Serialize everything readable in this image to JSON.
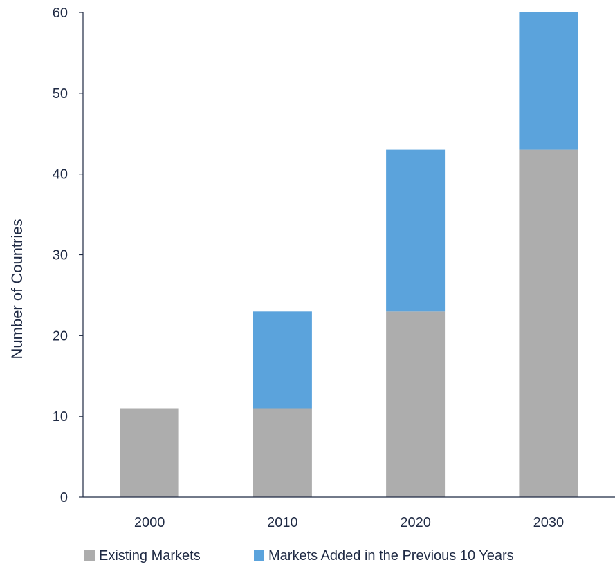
{
  "chart_data": {
    "type": "bar",
    "stacked": true,
    "categories": [
      "2000",
      "2010",
      "2020",
      "2030"
    ],
    "series": [
      {
        "name": "Existing Markets",
        "values": [
          11,
          11,
          23,
          43
        ],
        "color": "#adadad"
      },
      {
        "name": "Markets Added in the Previous 10 Years",
        "values": [
          0,
          12,
          20,
          17
        ],
        "color": "#5ba3dc"
      }
    ],
    "title": "",
    "xlabel": "",
    "ylabel": "Number of Countries",
    "ylim": [
      0,
      60
    ],
    "yticks": [
      0,
      10,
      20,
      30,
      40,
      50,
      60
    ],
    "grid": false,
    "legend_position": "bottom"
  }
}
